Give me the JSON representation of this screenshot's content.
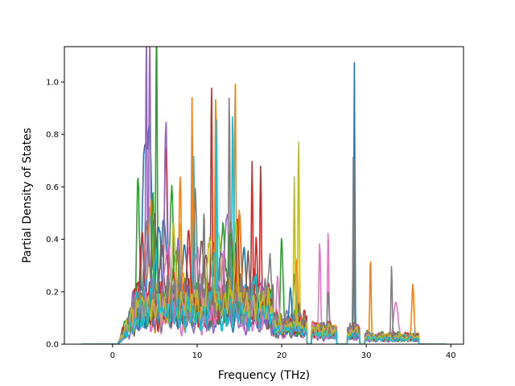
{
  "chart_data": {
    "type": "line",
    "title": "",
    "xlabel": "Frequency (THz)",
    "ylabel": "Partial Density of States",
    "xlim": [
      -5.7,
      41.5
    ],
    "ylim": [
      0.0,
      1.135
    ],
    "xticks": [
      0,
      10,
      20,
      30,
      40
    ],
    "yticks": [
      0.0,
      0.2,
      0.4,
      0.6,
      0.8,
      1.0
    ],
    "grid": false,
    "legend": "none",
    "x_range": [
      -3.7,
      39.5
    ],
    "series_colors": [
      "#1f77b4",
      "#ff7f0e",
      "#2ca02c",
      "#d62728",
      "#9467bd",
      "#8c564b",
      "#e377c2",
      "#7f7f7f",
      "#bcbd22",
      "#17becf",
      "#1f77b4",
      "#ff7f0e",
      "#2ca02c",
      "#d62728",
      "#9467bd",
      "#8c564b",
      "#e377c2",
      "#7f7f7f",
      "#bcbd22",
      "#17becf"
    ],
    "series": [
      {
        "peaks": [
          [
            3.8,
            0.66,
            0.5
          ],
          [
            4.4,
            0.65,
            0.4
          ],
          [
            6.0,
            0.3,
            0.8
          ],
          [
            12.0,
            0.25,
            0.6
          ],
          [
            14.5,
            0.22,
            0.6
          ],
          [
            28.6,
            1.04,
            0.12
          ],
          [
            21.5,
            0.18,
            0.3
          ]
        ]
      },
      {
        "peaks": [
          [
            12.2,
            0.87,
            0.18
          ],
          [
            14.5,
            0.85,
            0.18
          ],
          [
            9.5,
            0.48,
            0.3
          ],
          [
            21.8,
            0.27,
            0.25
          ],
          [
            30.5,
            0.31,
            0.15
          ],
          [
            35.5,
            0.2,
            0.25
          ]
        ]
      },
      {
        "peaks": [
          [
            3.0,
            0.47,
            0.25
          ],
          [
            5.2,
            1.08,
            0.15
          ],
          [
            7.0,
            0.35,
            0.4
          ],
          [
            20.0,
            0.32,
            0.25
          ],
          [
            13.0,
            0.25,
            0.5
          ]
        ]
      },
      {
        "peaks": [
          [
            6.3,
            0.55,
            0.3
          ],
          [
            11.7,
            0.78,
            0.15
          ],
          [
            16.5,
            0.53,
            0.15
          ],
          [
            17.5,
            0.48,
            0.15
          ],
          [
            14.0,
            0.3,
            0.4
          ]
        ]
      },
      {
        "peaks": [
          [
            4.4,
            1.08,
            0.18
          ],
          [
            4.0,
            0.97,
            0.15
          ],
          [
            6.3,
            0.64,
            0.3
          ],
          [
            13.5,
            0.3,
            0.5
          ]
        ]
      },
      {
        "peaks": [
          [
            5.0,
            0.4,
            0.5
          ],
          [
            10.5,
            0.3,
            0.5
          ],
          [
            15.0,
            0.35,
            0.5
          ],
          [
            22.0,
            0.1,
            0.4
          ]
        ]
      },
      {
        "peaks": [
          [
            24.5,
            0.34,
            0.2
          ],
          [
            25.5,
            0.4,
            0.15
          ],
          [
            19.5,
            0.2,
            0.3
          ],
          [
            33.5,
            0.15,
            0.5
          ],
          [
            9.0,
            0.25,
            0.5
          ]
        ]
      },
      {
        "peaks": [
          [
            13.8,
            0.81,
            0.15
          ],
          [
            28.5,
            0.78,
            0.12
          ],
          [
            33.0,
            0.27,
            0.15
          ],
          [
            10.8,
            0.39,
            0.2
          ],
          [
            25.5,
            0.17,
            0.2
          ]
        ]
      },
      {
        "peaks": [
          [
            21.5,
            0.59,
            0.15
          ],
          [
            22.0,
            0.71,
            0.15
          ],
          [
            8.0,
            0.3,
            0.4
          ],
          [
            12.5,
            0.25,
            0.5
          ]
        ]
      },
      {
        "peaks": [
          [
            9.6,
            0.55,
            0.2
          ],
          [
            12.3,
            0.75,
            0.15
          ],
          [
            14.2,
            0.77,
            0.18
          ],
          [
            4.5,
            0.4,
            0.5
          ]
        ]
      },
      {
        "peaks": [
          [
            5.5,
            0.35,
            0.6
          ],
          [
            8.5,
            0.3,
            0.5
          ],
          [
            15.5,
            0.25,
            0.5
          ],
          [
            21.0,
            0.15,
            0.3
          ]
        ]
      },
      {
        "peaks": [
          [
            4.5,
            0.4,
            0.5
          ],
          [
            8.0,
            0.52,
            0.25
          ],
          [
            9.4,
            0.77,
            0.15
          ],
          [
            15.0,
            0.35,
            0.3
          ]
        ]
      },
      {
        "peaks": [
          [
            4.8,
            0.49,
            0.3
          ],
          [
            7.5,
            0.25,
            0.6
          ],
          [
            14.0,
            0.3,
            0.5
          ]
        ]
      },
      {
        "peaks": [
          [
            3.5,
            0.3,
            0.5
          ],
          [
            9.0,
            0.28,
            0.5
          ],
          [
            14.8,
            0.35,
            0.3
          ],
          [
            17.0,
            0.25,
            0.3
          ]
        ]
      },
      {
        "peaks": [
          [
            4.2,
            0.35,
            0.4
          ],
          [
            7.8,
            0.3,
            0.5
          ],
          [
            12.8,
            0.28,
            0.5
          ]
        ]
      },
      {
        "peaks": [
          [
            5.8,
            0.2,
            0.7
          ],
          [
            11.0,
            0.18,
            0.7
          ],
          [
            16.0,
            0.15,
            0.5
          ]
        ]
      },
      {
        "peaks": [
          [
            6.5,
            0.25,
            0.6
          ],
          [
            10.0,
            0.22,
            0.6
          ],
          [
            13.0,
            0.2,
            0.5
          ]
        ]
      },
      {
        "peaks": [
          [
            4.0,
            0.28,
            0.5
          ],
          [
            9.8,
            0.35,
            0.3
          ],
          [
            18.5,
            0.12,
            0.4
          ]
        ]
      },
      {
        "peaks": [
          [
            7.2,
            0.3,
            0.4
          ],
          [
            11.5,
            0.26,
            0.5
          ],
          [
            14.6,
            0.3,
            0.4
          ]
        ]
      },
      {
        "peaks": [
          [
            5.0,
            0.22,
            0.6
          ],
          [
            12.0,
            0.2,
            0.6
          ],
          [
            16.8,
            0.18,
            0.4
          ]
        ]
      }
    ]
  }
}
